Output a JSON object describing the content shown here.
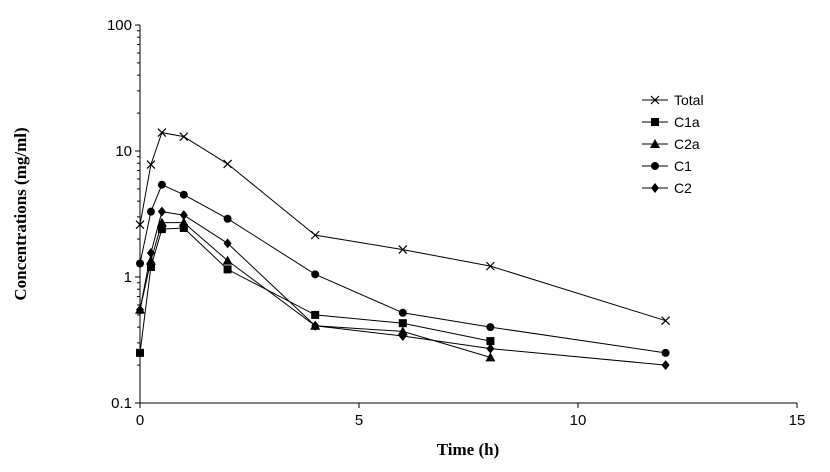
{
  "chart_data": {
    "type": "line",
    "xlabel": "Time (h)",
    "ylabel": "Concentrations (mg/ml)",
    "xlim": [
      0,
      15
    ],
    "ylim": [
      0.1,
      100
    ],
    "yscale": "log",
    "x_ticks": [
      0,
      5,
      10,
      15
    ],
    "x_tick_labels": [
      "0",
      "5",
      "10",
      "15"
    ],
    "y_ticks": [
      0.1,
      1,
      10,
      100
    ],
    "y_tick_labels": [
      "0.1",
      "1",
      "10",
      "100"
    ],
    "grid": false,
    "legend_position": "top-right",
    "series": [
      {
        "name": "Total",
        "marker": "x",
        "x": [
          0,
          0.25,
          0.5,
          1,
          2,
          4,
          6,
          8,
          12
        ],
        "y": [
          2.6,
          7.8,
          14,
          13,
          7.9,
          2.15,
          1.65,
          1.22,
          0.45
        ]
      },
      {
        "name": "C1a",
        "marker": "square",
        "x": [
          0,
          0.25,
          0.5,
          1,
          2,
          4,
          6,
          8
        ],
        "y": [
          0.25,
          1.2,
          2.4,
          2.45,
          1.15,
          0.5,
          0.43,
          0.31
        ]
      },
      {
        "name": "C2a",
        "marker": "triangle",
        "x": [
          0,
          0.25,
          0.5,
          1,
          2,
          4,
          6,
          8
        ],
        "y": [
          0.55,
          1.35,
          2.7,
          2.7,
          1.35,
          0.41,
          0.37,
          0.23
        ]
      },
      {
        "name": "C1",
        "marker": "circle",
        "x": [
          0,
          0.25,
          0.5,
          1,
          2,
          4,
          6,
          8,
          12
        ],
        "y": [
          1.28,
          3.3,
          5.4,
          4.5,
          2.9,
          1.05,
          0.52,
          0.4,
          0.25
        ]
      },
      {
        "name": "C2",
        "marker": "diamond",
        "x": [
          0,
          0.25,
          0.5,
          1,
          2,
          4,
          6,
          8,
          12
        ],
        "y": [
          0.55,
          1.55,
          3.3,
          3.1,
          1.85,
          0.41,
          0.34,
          0.27,
          0.2
        ]
      }
    ]
  }
}
